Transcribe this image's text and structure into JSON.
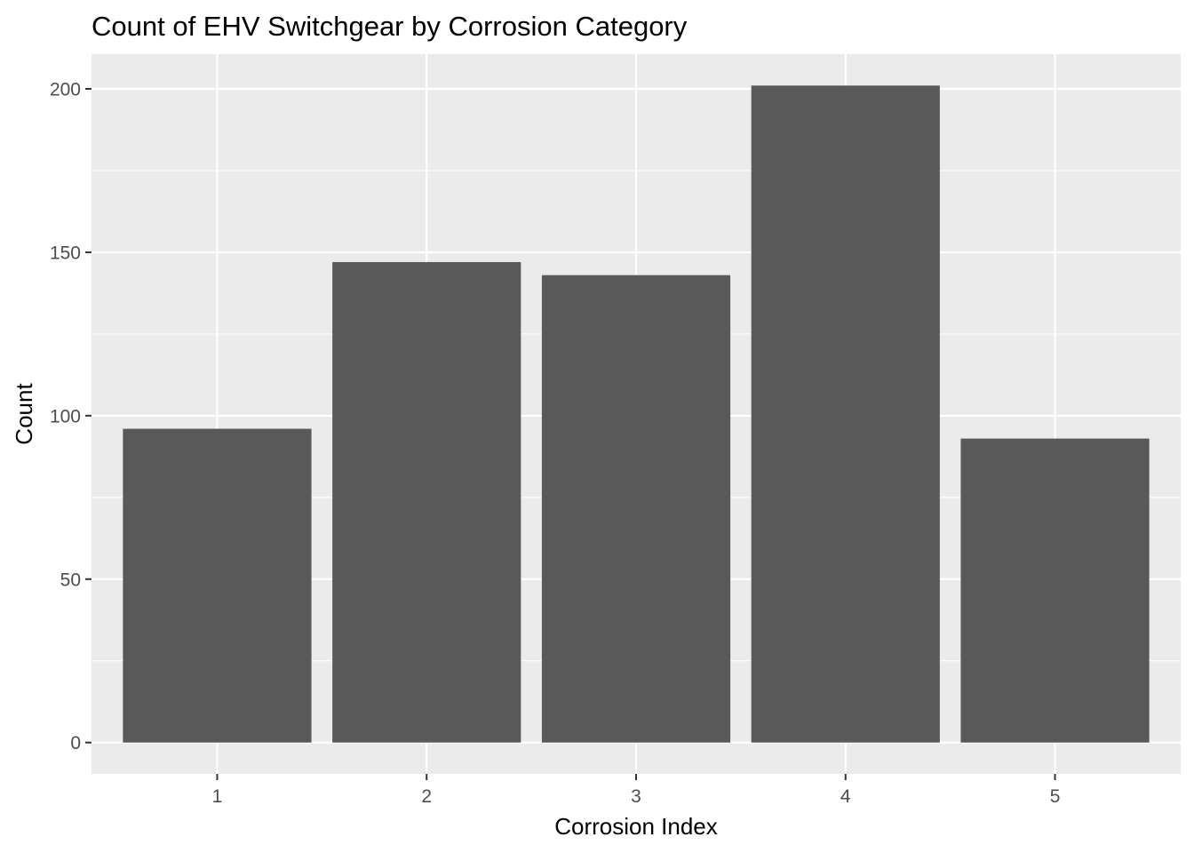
{
  "chart_data": {
    "type": "bar",
    "title": "Count of EHV Switchgear by Corrosion Category",
    "xlabel": "Corrosion Index",
    "ylabel": "Count",
    "categories": [
      "1",
      "2",
      "3",
      "4",
      "5"
    ],
    "values": [
      96,
      147,
      143,
      201,
      93
    ],
    "ylim": [
      -9.6,
      210.6
    ],
    "yticks": [
      0,
      50,
      100,
      150,
      200
    ],
    "ytick_labels": [
      "0",
      "50",
      "100",
      "150",
      "200"
    ],
    "grid": true,
    "legend": "none",
    "colors": {
      "bar": "#595959",
      "panel": "#ebebeb",
      "grid": "#ffffff",
      "tick_label": "#4d4d4d",
      "tick_mark": "#333333"
    }
  }
}
